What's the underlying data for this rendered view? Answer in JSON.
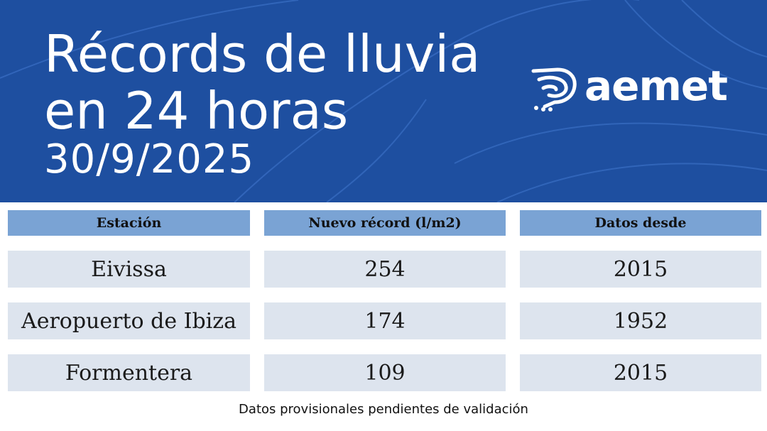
{
  "header": {
    "title_line1": "Récords de lluvia",
    "title_line2": "en 24 horas",
    "date": "30/9/2025",
    "logo_text": "aemet",
    "background_color": "#1e4fa0"
  },
  "table": {
    "columns": [
      "Estación",
      "Nuevo récord (l/m2)",
      "Datos desde"
    ],
    "rows": [
      {
        "station": "Eivissa",
        "record": "254",
        "since": "2015"
      },
      {
        "station": "Aeropuerto de Ibiza",
        "record": "174",
        "since": "1952"
      },
      {
        "station": "Formentera",
        "record": "109",
        "since": "2015"
      }
    ],
    "header_color": "#7aa3d4",
    "row_color": "#dde4ee"
  },
  "footnote": "Datos provisionales pendientes de validación"
}
